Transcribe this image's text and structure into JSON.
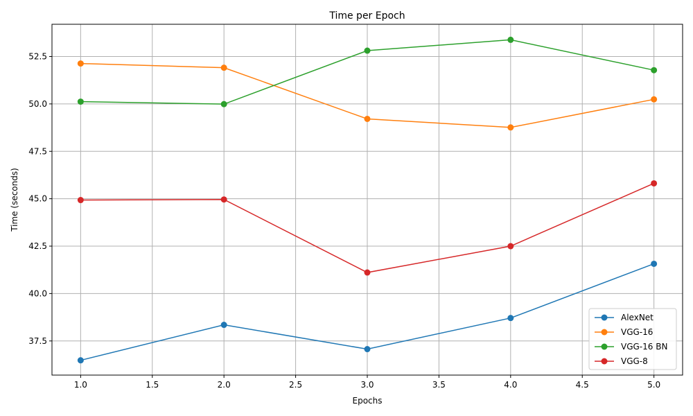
{
  "chart_data": {
    "type": "line",
    "title": "Time per Epoch",
    "xlabel": "Epochs",
    "ylabel": "Time (seconds)",
    "xlim": [
      0.8,
      5.2
    ],
    "ylim": [
      35.7,
      54.2
    ],
    "xticks": [
      1.0,
      1.5,
      2.0,
      2.5,
      3.0,
      3.5,
      4.0,
      4.5,
      5.0
    ],
    "xtick_labels": [
      "1.0",
      "1.5",
      "2.0",
      "2.5",
      "3.0",
      "3.5",
      "4.0",
      "4.5",
      "5.0"
    ],
    "yticks": [
      37.5,
      40.0,
      42.5,
      45.0,
      47.5,
      50.0,
      52.5
    ],
    "ytick_labels": [
      "37.5",
      "40.0",
      "42.5",
      "45.0",
      "47.5",
      "50.0",
      "52.5"
    ],
    "grid": true,
    "legend_position": "bottom-right",
    "x": [
      1,
      2,
      3,
      4,
      5
    ],
    "series": [
      {
        "name": "AlexNet",
        "color": "#1f77b4",
        "values": [
          36.48,
          38.35,
          37.07,
          38.71,
          41.57
        ]
      },
      {
        "name": "VGG-16",
        "color": "#ff7f0e",
        "values": [
          52.13,
          51.91,
          49.21,
          48.76,
          50.24
        ]
      },
      {
        "name": "VGG-16 BN",
        "color": "#2ca02c",
        "values": [
          50.12,
          49.99,
          52.81,
          53.38,
          51.78
        ]
      },
      {
        "name": "VGG-8",
        "color": "#d62728",
        "values": [
          44.93,
          44.96,
          41.11,
          42.5,
          45.81
        ]
      }
    ]
  }
}
